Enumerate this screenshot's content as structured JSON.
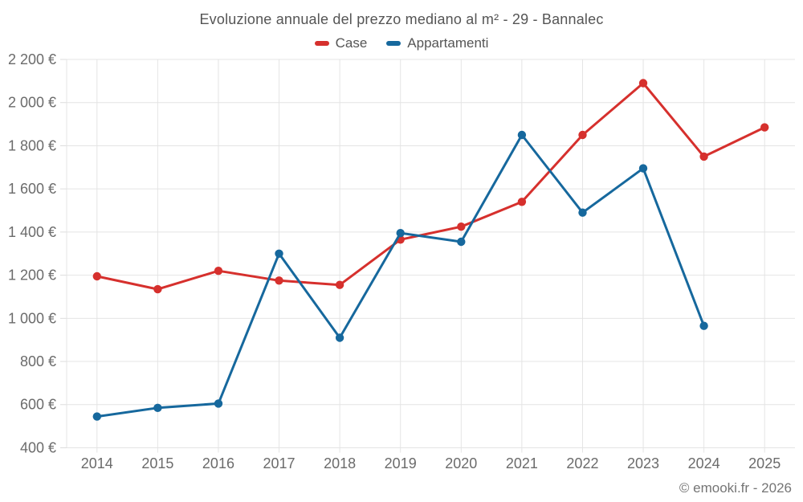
{
  "footer": {
    "copyright": "© emooki.fr - 2026"
  },
  "chart_data": {
    "type": "line",
    "title": "Evoluzione annuale del prezzo mediano al m² - 29 - Bannalec",
    "x": [
      2014,
      2015,
      2016,
      2017,
      2018,
      2019,
      2020,
      2021,
      2022,
      2023,
      2024,
      2025
    ],
    "xtick_labels": [
      "2014",
      "2015",
      "2016",
      "2017",
      "2018",
      "2019",
      "2020",
      "2021",
      "2022",
      "2023",
      "2024",
      "2025"
    ],
    "ylim": [
      400,
      2200
    ],
    "ytick_step": 200,
    "ytick_labels": [
      "400 €",
      "600 €",
      "800 €",
      "1 000 €",
      "1 200 €",
      "1 400 €",
      "1 600 €",
      "1 800 €",
      "2 000 €",
      "2 200 €"
    ],
    "ylabel_unit": "€",
    "grid": true,
    "legend_position": "top",
    "series": [
      {
        "name": "Case",
        "color": "#d6302d",
        "values": [
          1195,
          1135,
          1220,
          1175,
          1155,
          1365,
          1425,
          1540,
          1850,
          2090,
          1750,
          1885
        ]
      },
      {
        "name": "Appartamenti",
        "color": "#16689d",
        "values": [
          545,
          585,
          605,
          1300,
          910,
          1395,
          1355,
          1850,
          1490,
          1695,
          965,
          null
        ]
      }
    ]
  }
}
